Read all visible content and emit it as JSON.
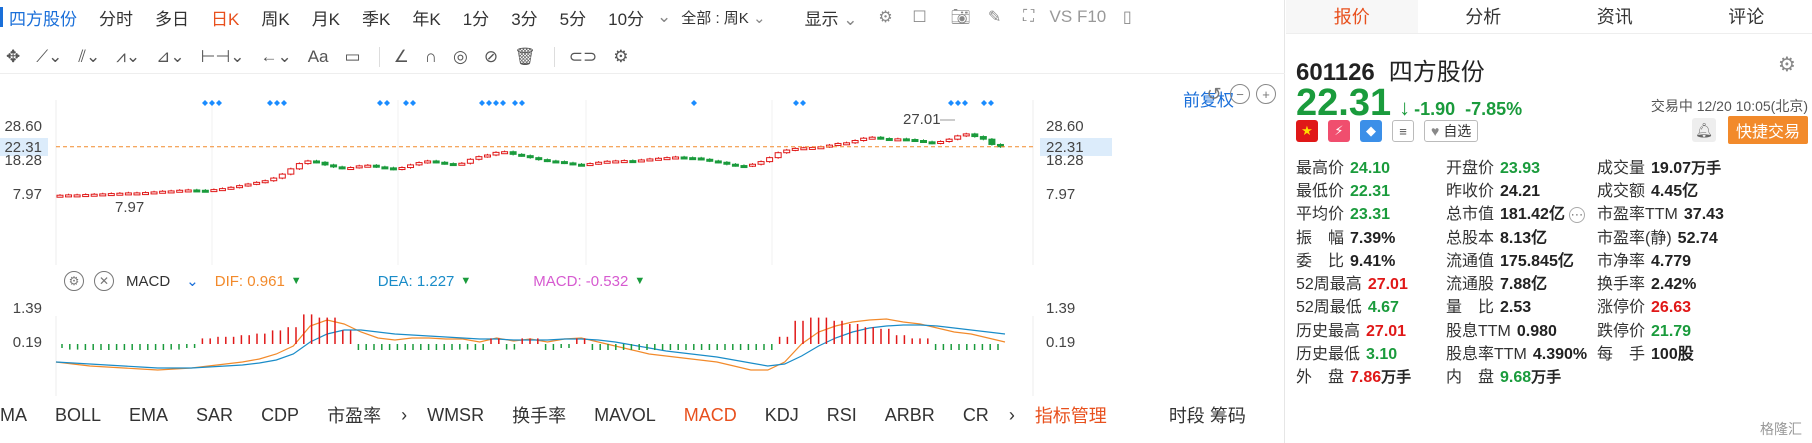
{
  "toolbar": {
    "stock_name": "四方股份",
    "periods": [
      "分时",
      "多日",
      "日K",
      "周K",
      "月K",
      "季K",
      "年K",
      "1分",
      "3分",
      "5分",
      "10分"
    ],
    "active_period": "日K",
    "range_label": "全部 : 周K",
    "display_label": "显示",
    "vs_label": "VS F10"
  },
  "chart": {
    "adjust_label": "前复权",
    "price_axis_left": [
      "28.60",
      "22.31",
      "18.28",
      "7.97"
    ],
    "price_axis_right": [
      "28.60",
      "22.31",
      "18.28",
      "7.97"
    ],
    "high_marker": "27.01",
    "low_marker": "7.97",
    "colors": {
      "up": "#e01818",
      "down": "#1a9b3c",
      "current_line": "#f28a2b",
      "marker": "#1a8cff"
    }
  },
  "macd": {
    "name": "MACD",
    "dif_label": "DIF: 0.961",
    "dea_label": "DEA: 1.227",
    "macd_label": "MACD: -0.532",
    "axis_left": [
      "1.39",
      "0.19"
    ],
    "axis_right": [
      "1.39",
      "0.19"
    ]
  },
  "indicators": {
    "items": [
      "MA",
      "BOLL",
      "EMA",
      "SAR",
      "CDP",
      "市盈率",
      "WMSR",
      "换手率",
      "MAVOL",
      "MACD",
      "KDJ",
      "RSI",
      "ARBR",
      "CR"
    ],
    "active": "MACD",
    "manage_label": "指标管理",
    "extra_label": "时段 筹码"
  },
  "right_tabs": [
    "报价",
    "分析",
    "资讯",
    "评论"
  ],
  "quote": {
    "code": "601126",
    "name": "四方股份",
    "price": "22.31",
    "change": "-1.90",
    "change_pct": "-7.85%",
    "trade_time": "交易中 12/20 10:05(北京)",
    "watchlist_label": "自选",
    "fast_trade_label": "快捷交易",
    "rows": [
      [
        [
          "最高价",
          "24.10",
          "down",
          ""
        ],
        [
          "开盘价",
          "23.93",
          "down",
          ""
        ],
        [
          "成交量",
          "19.07",
          "",
          "万手"
        ]
      ],
      [
        [
          "最低价",
          "22.31",
          "down",
          ""
        ],
        [
          "昨收价",
          "24.21",
          "",
          ""
        ],
        [
          "成交额",
          "4.45亿",
          "",
          ""
        ]
      ],
      [
        [
          "平均价",
          "23.31",
          "down",
          ""
        ],
        [
          "总市值",
          "181.42亿",
          "",
          ""
        ],
        [
          "市盈率TTM",
          "37.43",
          "",
          ""
        ]
      ],
      [
        [
          "振　幅",
          "7.39%",
          "",
          ""
        ],
        [
          "总股本",
          "8.13亿",
          "",
          ""
        ],
        [
          "市盈率(静)",
          "52.74",
          "",
          ""
        ]
      ],
      [
        [
          "委　比",
          "9.41%",
          "",
          ""
        ],
        [
          "流通值",
          "175.845亿",
          "",
          ""
        ],
        [
          "市净率",
          "4.779",
          "",
          ""
        ]
      ],
      [
        [
          "52周最高",
          "27.01",
          "up",
          ""
        ],
        [
          "流通股",
          "7.88亿",
          "",
          ""
        ],
        [
          "换手率",
          "2.42%",
          "",
          ""
        ]
      ],
      [
        [
          "52周最低",
          "4.67",
          "down",
          ""
        ],
        [
          "量　比",
          "2.53",
          "",
          ""
        ],
        [
          "涨停价",
          "26.63",
          "up",
          ""
        ]
      ],
      [
        [
          "历史最高",
          "27.01",
          "up",
          ""
        ],
        [
          "股息TTM",
          "0.980",
          "",
          ""
        ],
        [
          "跌停价",
          "21.79",
          "down",
          ""
        ]
      ],
      [
        [
          "历史最低",
          "3.10",
          "down",
          ""
        ],
        [
          "股息率TTM",
          "4.390%",
          "",
          ""
        ],
        [
          "每　手",
          "100股",
          "",
          ""
        ]
      ],
      [
        [
          "外　盘",
          "7.86",
          "up",
          "万手"
        ],
        [
          "内　盘",
          "9.68",
          "down",
          "万手"
        ],
        [
          "",
          "",
          "",
          ""
        ]
      ]
    ]
  },
  "watermark": "格隆汇"
}
